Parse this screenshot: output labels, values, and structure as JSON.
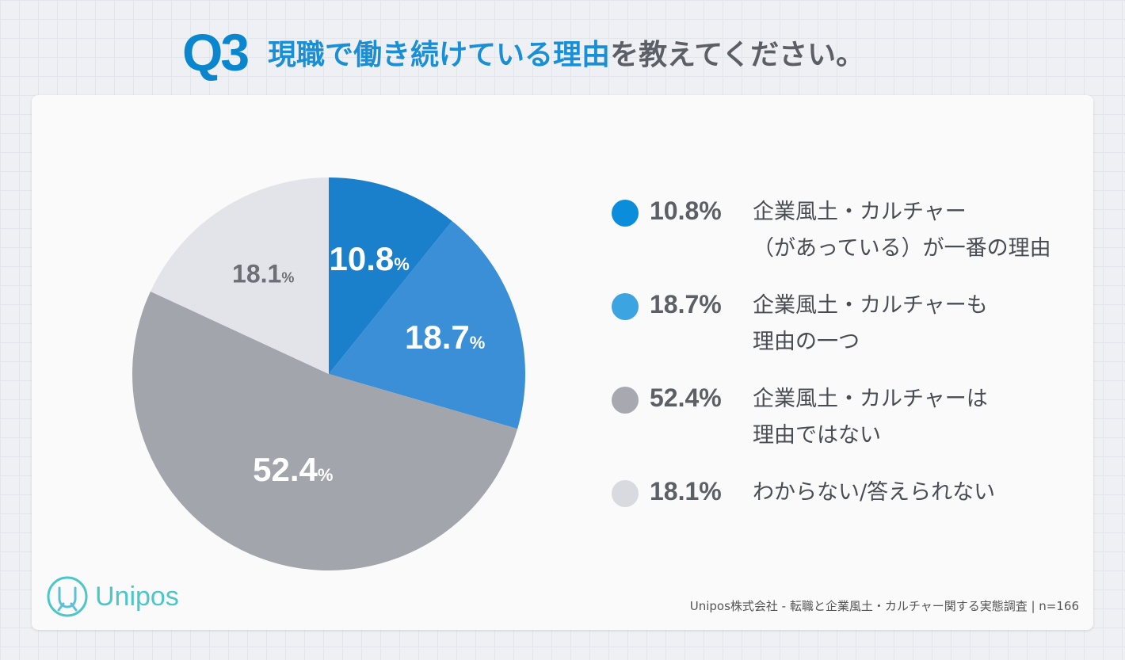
{
  "title": {
    "q": "Q3",
    "blue": "現職で働き続けている理由",
    "gray": "を教えてください。"
  },
  "chart_data": {
    "type": "pie",
    "title": "現職で働き続けている理由を教えてください。",
    "slices": [
      {
        "label": "企業風土・カルチャー（があっている）が一番の理由",
        "value": 10.8,
        "display": "10.8",
        "color": "#1a80cc",
        "legend_color": "#0a8ddb",
        "text_color": "#ffffff"
      },
      {
        "label": "企業風土・カルチャーも理由の一つ",
        "value": 18.7,
        "display": "18.7",
        "color": "#3a8fd6",
        "legend_color": "#3ca4e0",
        "text_color": "#ffffff"
      },
      {
        "label": "企業風土・カルチャーは理由ではない",
        "value": 52.4,
        "display": "52.4",
        "color": "#a3a5ad",
        "legend_color": "#a8a9b0",
        "text_color": "#ffffff"
      },
      {
        "label": "わからない/答えられない",
        "value": 18.1,
        "display": "18.1",
        "color": "#e3e4e9",
        "legend_color": "#d9dadf",
        "text_color": "#6d6f76"
      }
    ],
    "unit": "%"
  },
  "legend": [
    {
      "pct": "10.8%",
      "line1": "企業風土・カルチャー",
      "line2": "（があっている）が一番の理由"
    },
    {
      "pct": "18.7%",
      "line1": "企業風土・カルチャーも",
      "line2": "理由の一つ"
    },
    {
      "pct": "52.4%",
      "line1": "企業風土・カルチャーは",
      "line2": "理由ではない"
    },
    {
      "pct": "18.1%",
      "line1": "わからない/答えられない",
      "line2": ""
    }
  ],
  "logo": "Unipos",
  "source": "Unipos株式会社 - 転職と企業風土・カルチャー関する実態調査 | n=166"
}
